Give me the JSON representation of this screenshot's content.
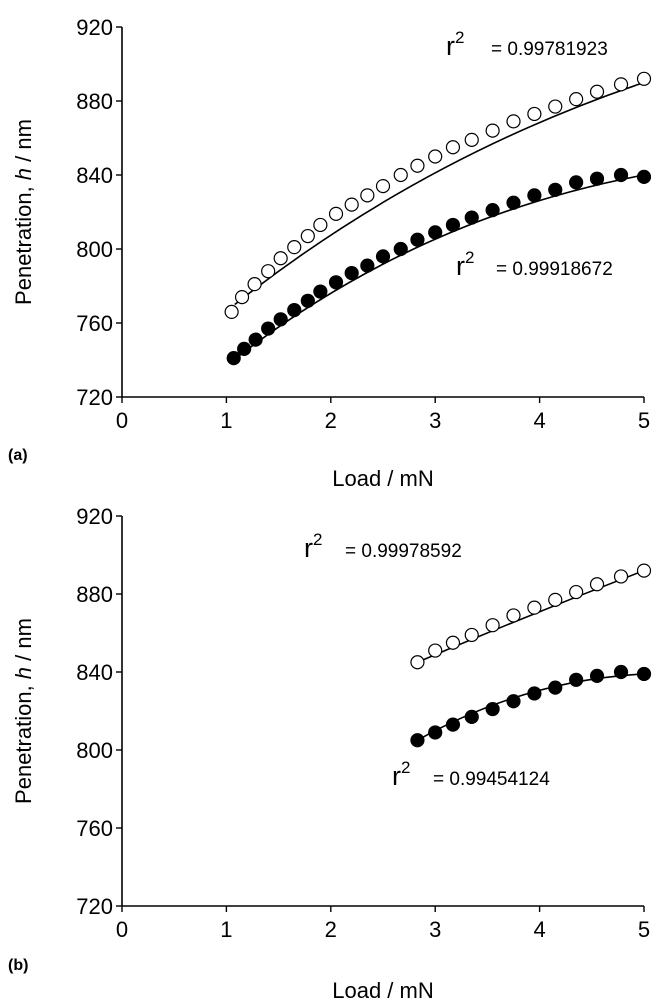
{
  "chart_data": [
    {
      "type": "scatter",
      "panel_label": "(a)",
      "xlabel": "Load / mN",
      "ylabel_prefix": "Penetration, ",
      "ylabel_var": "h",
      "ylabel_suffix": " / nm",
      "xlim": [
        0,
        5
      ],
      "ylim": [
        720,
        920
      ],
      "x_ticks": [
        0,
        1,
        2,
        3,
        4,
        5
      ],
      "y_ticks": [
        720,
        760,
        800,
        840,
        880,
        920
      ],
      "grid": false,
      "series": [
        {
          "marker": "open-circle",
          "x": [
            1.05,
            1.15,
            1.27,
            1.4,
            1.52,
            1.65,
            1.78,
            1.9,
            2.05,
            2.2,
            2.35,
            2.5,
            2.67,
            2.83,
            3.0,
            3.17,
            3.35,
            3.55,
            3.75,
            3.95,
            4.15,
            4.35,
            4.55,
            4.78,
            5.0
          ],
          "y": [
            766,
            774,
            781,
            788,
            795,
            801,
            807,
            813,
            819,
            824,
            829,
            834,
            840,
            845,
            850,
            855,
            859,
            864,
            869,
            873,
            877,
            881,
            885,
            889,
            892
          ],
          "fit": {
            "x0": 1.08,
            "y0": 770,
            "x1": 5.0,
            "y1": 890,
            "curv": 0.96
          },
          "r2_label": "r",
          "r2_sup": "2",
          "r2_value": "= 0.99781923"
        },
        {
          "marker": "filled-circle",
          "x": [
            1.07,
            1.17,
            1.28,
            1.4,
            1.52,
            1.65,
            1.78,
            1.9,
            2.05,
            2.2,
            2.35,
            2.5,
            2.67,
            2.83,
            3.0,
            3.17,
            3.35,
            3.55,
            3.75,
            3.95,
            4.15,
            4.35,
            4.55,
            4.78,
            5.0
          ],
          "y": [
            741,
            746,
            751,
            757,
            762,
            767,
            772,
            777,
            782,
            787,
            791,
            796,
            800,
            805,
            809,
            813,
            817,
            821,
            825,
            829,
            832,
            836,
            838,
            840,
            839
          ],
          "fit": {
            "x0": 1.07,
            "y0": 740,
            "x1": 5.0,
            "y1": 840,
            "curv": 1.35
          },
          "r2_label": "r",
          "r2_sup": "2",
          "r2_value": "= 0.99918672"
        }
      ]
    },
    {
      "type": "scatter",
      "panel_label": "(b)",
      "xlabel": "Load / mN",
      "ylabel_prefix": "Penetration, ",
      "ylabel_var": "h",
      "ylabel_suffix": " / nm",
      "xlim": [
        0,
        5
      ],
      "ylim": [
        720,
        920
      ],
      "x_ticks": [
        0,
        1,
        2,
        3,
        4,
        5
      ],
      "y_ticks": [
        720,
        760,
        800,
        840,
        880,
        920
      ],
      "grid": false,
      "series": [
        {
          "marker": "open-circle",
          "x": [
            2.83,
            3.0,
            3.17,
            3.35,
            3.55,
            3.75,
            3.95,
            4.15,
            4.35,
            4.55,
            4.78,
            5.0
          ],
          "y": [
            845,
            851,
            855,
            859,
            864,
            869,
            873,
            877,
            881,
            885,
            889,
            892
          ],
          "fit": {
            "x0": 2.83,
            "y0": 845,
            "x1": 5.0,
            "y1": 892,
            "curv": 0.1
          },
          "r2_label": "r",
          "r2_sup": "2",
          "r2_value": "= 0.99978592"
        },
        {
          "marker": "filled-circle",
          "x": [
            2.83,
            3.0,
            3.17,
            3.35,
            3.55,
            3.75,
            3.95,
            4.15,
            4.35,
            4.55,
            4.78,
            5.0
          ],
          "y": [
            805,
            809,
            813,
            817,
            821,
            825,
            829,
            832,
            836,
            838,
            840,
            839
          ],
          "fit": {
            "x0": 2.83,
            "y0": 805,
            "x1": 5.0,
            "y1": 839,
            "curv": 1.3
          },
          "r2_label": "r",
          "r2_sup": "2",
          "r2_value": "= 0.99454124"
        }
      ]
    }
  ]
}
